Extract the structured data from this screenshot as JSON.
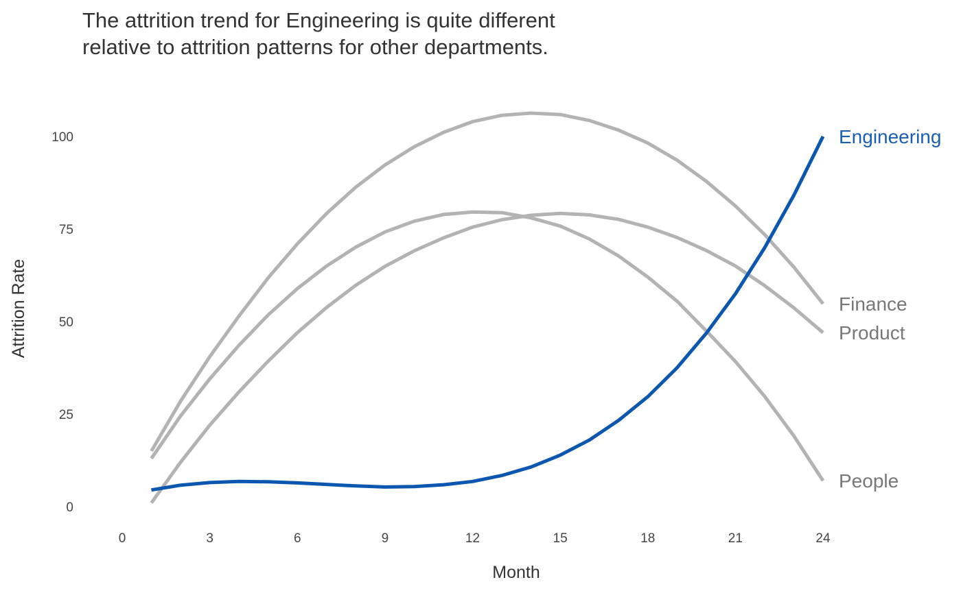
{
  "chart_data": {
    "type": "line",
    "title_lines": [
      "The attrition trend for Engineering is quite different",
      "relative to attrition patterns for other departments."
    ],
    "xlabel": "Month",
    "ylabel": "Attrition Rate",
    "xlim": [
      0,
      24
    ],
    "ylim": [
      0,
      110
    ],
    "x_ticks": [
      0,
      3,
      6,
      9,
      12,
      15,
      18,
      21,
      24
    ],
    "y_ticks": [
      0,
      25,
      50,
      75,
      100
    ],
    "grid": false,
    "legend": "direct labels at line ends",
    "x": [
      1,
      2,
      3,
      4,
      5,
      6,
      7,
      8,
      9,
      10,
      11,
      12,
      13,
      14,
      15,
      16,
      17,
      18,
      19,
      20,
      21,
      22,
      23,
      24
    ],
    "series": [
      {
        "name": "Finance",
        "color": "#b3b3b3",
        "label_color": "#777777",
        "values": [
          15,
          28.5,
          40.5,
          51.5,
          61.8,
          71,
          79.2,
          86.3,
          92.3,
          97.2,
          101.1,
          104,
          105.7,
          106.3,
          105.9,
          104.3,
          101.7,
          98.2,
          93.6,
          87.9,
          81.2,
          73.5,
          64.7,
          54.8
        ]
      },
      {
        "name": "People",
        "color": "#b3b3b3",
        "label_color": "#777777",
        "values": [
          13,
          24.5,
          34.5,
          43.6,
          51.8,
          58.9,
          65,
          70.1,
          74.2,
          77.1,
          78.9,
          79.6,
          79.4,
          78,
          75.8,
          72.3,
          67.7,
          62,
          55.5,
          47.5,
          39.2,
          29.8,
          19.1,
          7
        ]
      },
      {
        "name": "Product",
        "color": "#b3b3b3",
        "label_color": "#777777",
        "values": [
          1,
          12,
          22,
          31,
          39.3,
          47,
          53.8,
          59.8,
          64.9,
          69.1,
          72.6,
          75.5,
          77.5,
          78.7,
          79.2,
          78.8,
          77.6,
          75.5,
          72.7,
          69.2,
          65,
          59.7,
          53.7,
          47
        ]
      },
      {
        "name": "Engineering",
        "color": "#0b57b0",
        "label_color": "#1a5fb4",
        "values": [
          4.5,
          5.8,
          6.5,
          6.8,
          6.7,
          6.4,
          6,
          5.6,
          5.3,
          5.4,
          5.9,
          6.8,
          8.4,
          10.7,
          13.9,
          18,
          23.3,
          29.7,
          37.5,
          46.8,
          57.5,
          69.9,
          84.1,
          100
        ]
      }
    ]
  }
}
